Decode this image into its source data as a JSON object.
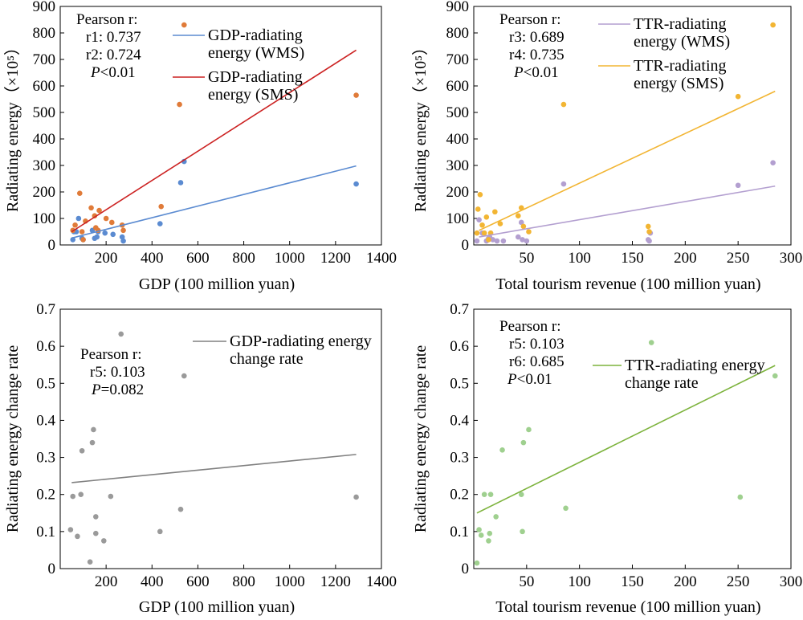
{
  "chart_data": [
    {
      "type": "scatter",
      "xlabel": "GDP (100 million yuan)",
      "ylabel": "Radiating energy（×10⁵）",
      "xlim": [
        0,
        1400
      ],
      "ylim": [
        0,
        900
      ],
      "xticks": [
        200,
        400,
        600,
        800,
        1000,
        1200,
        1400
      ],
      "yticks": [
        0,
        100,
        200,
        300,
        400,
        500,
        600,
        700,
        800,
        900
      ],
      "stats": [
        "Pearson r:",
        "r1: 0.737",
        "r2: 0.724"
      ],
      "p_label": "P",
      "p_value": "<0.01",
      "legend_position": "top-right",
      "series": [
        {
          "name": "GDP-radiating energy (WMS)",
          "color": "#5b8bd1",
          "points": [
            [
              55,
              20
            ],
            [
              60,
              50
            ],
            [
              70,
              50
            ],
            [
              80,
              100
            ],
            [
              95,
              25
            ],
            [
              100,
              20
            ],
            [
              140,
              55
            ],
            [
              150,
              25
            ],
            [
              160,
              30
            ],
            [
              165,
              50
            ],
            [
              195,
              45
            ],
            [
              230,
              40
            ],
            [
              270,
              30
            ],
            [
              275,
              15
            ],
            [
              435,
              80
            ],
            [
              525,
              235
            ],
            [
              540,
              315
            ],
            [
              1290,
              230
            ]
          ],
          "fit": [
            [
              50,
              26
            ],
            [
              1290,
              298
            ]
          ]
        },
        {
          "name": "GDP-radiating energy (SMS)",
          "color": "#e07b39",
          "points": [
            [
              55,
              55
            ],
            [
              65,
              75
            ],
            [
              85,
              195
            ],
            [
              95,
              50
            ],
            [
              100,
              20
            ],
            [
              110,
              90
            ],
            [
              135,
              140
            ],
            [
              150,
              110
            ],
            [
              155,
              65
            ],
            [
              165,
              55
            ],
            [
              170,
              130
            ],
            [
              200,
              100
            ],
            [
              225,
              85
            ],
            [
              270,
              75
            ],
            [
              275,
              55
            ],
            [
              440,
              145
            ],
            [
              520,
              530
            ],
            [
              540,
              830
            ],
            [
              1290,
              565
            ]
          ],
          "fit": [
            [
              50,
              50
            ],
            [
              1290,
              735
            ]
          ],
          "fit_color": "#cc2222"
        }
      ]
    },
    {
      "type": "scatter",
      "xlabel": "Total tourism revenue (100 million yuan)",
      "ylabel": "Radiating energy（×10⁵）",
      "xlim": [
        0,
        300
      ],
      "ylim": [
        0,
        900
      ],
      "xticks": [
        50,
        100,
        150,
        200,
        250,
        300
      ],
      "yticks": [
        0,
        100,
        200,
        300,
        400,
        500,
        600,
        700,
        800,
        900
      ],
      "stats": [
        "Pearson r:",
        "r3: 0.689",
        "r4: 0.735"
      ],
      "p_label": "P",
      "p_value": "<0.01",
      "legend_position": "top-right",
      "series": [
        {
          "name": "TTR-radiating energy (WMS)",
          "color": "#b39fd0",
          "points": [
            [
              3,
              15
            ],
            [
              5,
              95
            ],
            [
              8,
              45
            ],
            [
              12,
              15
            ],
            [
              14,
              25
            ],
            [
              15,
              30
            ],
            [
              18,
              20
            ],
            [
              22,
              15
            ],
            [
              28,
              15
            ],
            [
              42,
              30
            ],
            [
              45,
              85
            ],
            [
              46,
              20
            ],
            [
              50,
              15
            ],
            [
              85,
              230
            ],
            [
              165,
              20
            ],
            [
              166,
              15
            ],
            [
              167,
              45
            ],
            [
              250,
              225
            ],
            [
              283,
              310
            ]
          ],
          "fit": [
            [
              5,
              30
            ],
            [
              285,
              222
            ]
          ]
        },
        {
          "name": "TTR-radiating energy (SMS)",
          "color": "#f2b533",
          "points": [
            [
              3,
              45
            ],
            [
              4,
              135
            ],
            [
              6,
              190
            ],
            [
              8,
              75
            ],
            [
              10,
              45
            ],
            [
              12,
              105
            ],
            [
              14,
              20
            ],
            [
              16,
              45
            ],
            [
              20,
              125
            ],
            [
              25,
              80
            ],
            [
              42,
              110
            ],
            [
              45,
              140
            ],
            [
              47,
              70
            ],
            [
              52,
              50
            ],
            [
              85,
              530
            ],
            [
              165,
              70
            ],
            [
              166,
              50
            ],
            [
              250,
              560
            ],
            [
              283,
              830
            ]
          ],
          "fit": [
            [
              5,
              55
            ],
            [
              285,
              580
            ]
          ]
        }
      ]
    },
    {
      "type": "scatter",
      "xlabel": "GDP (100 million yuan)",
      "ylabel": "Radiating energy change rate",
      "xlim": [
        0,
        1400
      ],
      "ylim": [
        0,
        0.7
      ],
      "xticks": [
        200,
        400,
        600,
        800,
        1000,
        1200,
        1400
      ],
      "yticks": [
        0,
        0.1,
        0.2,
        0.3,
        0.4,
        0.5,
        0.6,
        0.7
      ],
      "stats": [
        "Pearson r:",
        "r5: 0.103"
      ],
      "p_label": "P",
      "p_value": "=0.082",
      "legend_position": "top-right",
      "series": [
        {
          "name": "GDP-radiating energy change rate",
          "color": "#9a9a9a",
          "points": [
            [
              45,
              0.105
            ],
            [
              55,
              0.195
            ],
            [
              75,
              0.087
            ],
            [
              90,
              0.2
            ],
            [
              95,
              0.318
            ],
            [
              130,
              0.018
            ],
            [
              140,
              0.34
            ],
            [
              145,
              0.375
            ],
            [
              155,
              0.095
            ],
            [
              155,
              0.14
            ],
            [
              190,
              0.075
            ],
            [
              220,
              0.195
            ],
            [
              265,
              0.633
            ],
            [
              435,
              0.1
            ],
            [
              525,
              0.16
            ],
            [
              540,
              0.52
            ],
            [
              1290,
              0.193
            ]
          ],
          "fit": [
            [
              50,
              0.232
            ],
            [
              1290,
              0.308
            ]
          ],
          "fit_color": "#808080"
        }
      ]
    },
    {
      "type": "scatter",
      "xlabel": "Total tourism revenue (100 million yuan)",
      "ylabel": "Radiating energy change rate",
      "xlim": [
        0,
        300
      ],
      "ylim": [
        0,
        0.7
      ],
      "xticks": [
        50,
        100,
        150,
        200,
        250,
        300
      ],
      "yticks": [
        0,
        0.1,
        0.2,
        0.3,
        0.4,
        0.5,
        0.6,
        0.7
      ],
      "stats": [
        "Pearson r:",
        "r5: 0.103",
        "r6: 0.685"
      ],
      "p_label": "P",
      "p_value": "<0.01",
      "legend_position": "top-right",
      "series": [
        {
          "name": "TTR-radiating energy change rate",
          "color": "#9fd08f",
          "points": [
            [
              3,
              0.015
            ],
            [
              5,
              0.105
            ],
            [
              7,
              0.09
            ],
            [
              10,
              0.2
            ],
            [
              14,
              0.075
            ],
            [
              15,
              0.095
            ],
            [
              16,
              0.2
            ],
            [
              21,
              0.14
            ],
            [
              27,
              0.32
            ],
            [
              45,
              0.2
            ],
            [
              46,
              0.1
            ],
            [
              47,
              0.34
            ],
            [
              52,
              0.375
            ],
            [
              87,
              0.163
            ],
            [
              168,
              0.61
            ],
            [
              252,
              0.193
            ],
            [
              285,
              0.52
            ]
          ],
          "fit": [
            [
              3,
              0.15
            ],
            [
              285,
              0.548
            ]
          ],
          "fit_color": "#7db33d"
        }
      ]
    }
  ]
}
